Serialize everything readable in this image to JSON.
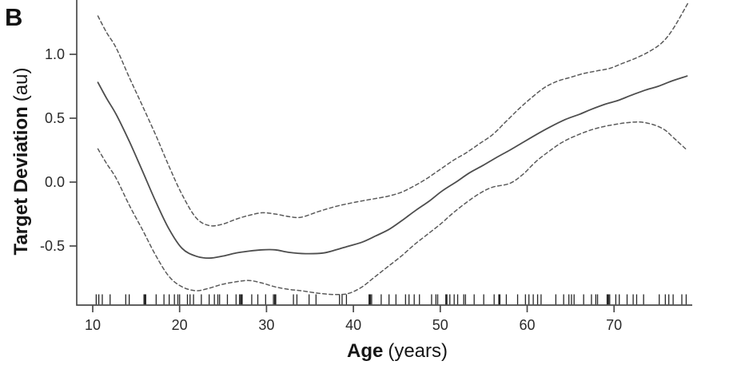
{
  "panel_label": "B",
  "axes": {
    "y_label_bold": "Target Deviation",
    "y_label_unit": "(au)",
    "x_label_bold": "Age",
    "x_label_unit": "(years)",
    "y_tick_labels": [
      "1.0",
      "0.5",
      "0.0",
      "-0.5"
    ],
    "x_tick_labels": [
      "10",
      "20",
      "30",
      "40",
      "50",
      "60",
      "70"
    ]
  },
  "colors": {
    "background": "#ffffff",
    "axis": "#4a4a4a",
    "tick_text": "#2a2a2a",
    "fit_line": "#4d4d4d",
    "ci_line": "#5a5a5a",
    "rug": "#262626",
    "label_text": "#161616"
  },
  "chart_data": {
    "type": "line",
    "title": "",
    "xlabel": "Age (years)",
    "ylabel": "Target Deviation (au)",
    "xlim": [
      8.1,
      79.1
    ],
    "ylim": [
      -0.96,
      1.43
    ],
    "x_ticks": [
      10,
      20,
      30,
      40,
      50,
      60,
      70
    ],
    "y_ticks": [
      1.0,
      0.5,
      0.0,
      -0.5
    ],
    "grid": false,
    "legend": "none",
    "series": [
      {
        "name": "smooth-fit",
        "style": "solid",
        "points": [
          [
            10.6,
            0.78
          ],
          [
            11.6,
            0.655
          ],
          [
            12.7,
            0.53
          ],
          [
            14.2,
            0.32
          ],
          [
            15.7,
            0.09
          ],
          [
            17.3,
            -0.16
          ],
          [
            18.8,
            -0.37
          ],
          [
            20.3,
            -0.52
          ],
          [
            21.9,
            -0.58
          ],
          [
            23.4,
            -0.595
          ],
          [
            24.9,
            -0.58
          ],
          [
            26.5,
            -0.555
          ],
          [
            28.0,
            -0.54
          ],
          [
            29.5,
            -0.53
          ],
          [
            31.0,
            -0.53
          ],
          [
            32.6,
            -0.55
          ],
          [
            34.5,
            -0.56
          ],
          [
            36.5,
            -0.555
          ],
          [
            38.0,
            -0.53
          ],
          [
            39.5,
            -0.5
          ],
          [
            41.0,
            -0.47
          ],
          [
            42.6,
            -0.42
          ],
          [
            44.1,
            -0.37
          ],
          [
            45.6,
            -0.3
          ],
          [
            47.2,
            -0.22
          ],
          [
            48.7,
            -0.15
          ],
          [
            50.2,
            -0.07
          ],
          [
            51.8,
            0.0
          ],
          [
            53.3,
            0.07
          ],
          [
            54.9,
            0.13
          ],
          [
            56.4,
            0.19
          ],
          [
            58.0,
            0.25
          ],
          [
            59.5,
            0.31
          ],
          [
            61.0,
            0.37
          ],
          [
            62.6,
            0.43
          ],
          [
            64.4,
            0.49
          ],
          [
            66.0,
            0.53
          ],
          [
            67.4,
            0.57
          ],
          [
            69.0,
            0.61
          ],
          [
            70.5,
            0.64
          ],
          [
            72.0,
            0.68
          ],
          [
            73.6,
            0.72
          ],
          [
            75.1,
            0.75
          ],
          [
            76.6,
            0.79
          ],
          [
            78.4,
            0.83
          ]
        ]
      },
      {
        "name": "upper-95ci",
        "style": "dashed",
        "points": [
          [
            10.6,
            1.3
          ],
          [
            11.6,
            1.17
          ],
          [
            12.7,
            1.05
          ],
          [
            14.2,
            0.82
          ],
          [
            15.7,
            0.6
          ],
          [
            17.3,
            0.36
          ],
          [
            18.8,
            0.12
          ],
          [
            20.3,
            -0.1
          ],
          [
            21.9,
            -0.28
          ],
          [
            23.4,
            -0.34
          ],
          [
            24.9,
            -0.33
          ],
          [
            26.5,
            -0.29
          ],
          [
            28.0,
            -0.26
          ],
          [
            29.5,
            -0.24
          ],
          [
            31.0,
            -0.25
          ],
          [
            32.6,
            -0.27
          ],
          [
            34.0,
            -0.275
          ],
          [
            36.0,
            -0.23
          ],
          [
            38.0,
            -0.19
          ],
          [
            40.0,
            -0.16
          ],
          [
            42.0,
            -0.135
          ],
          [
            44.0,
            -0.11
          ],
          [
            45.5,
            -0.08
          ],
          [
            47.0,
            -0.03
          ],
          [
            48.5,
            0.03
          ],
          [
            50.0,
            0.1
          ],
          [
            51.5,
            0.17
          ],
          [
            53.0,
            0.23
          ],
          [
            54.5,
            0.3
          ],
          [
            56.0,
            0.37
          ],
          [
            57.5,
            0.47
          ],
          [
            59.0,
            0.57
          ],
          [
            60.5,
            0.66
          ],
          [
            62.0,
            0.74
          ],
          [
            63.5,
            0.79
          ],
          [
            65.0,
            0.82
          ],
          [
            66.5,
            0.85
          ],
          [
            68.0,
            0.87
          ],
          [
            69.5,
            0.89
          ],
          [
            71.0,
            0.93
          ],
          [
            72.5,
            0.97
          ],
          [
            74.0,
            1.02
          ],
          [
            75.5,
            1.09
          ],
          [
            76.8,
            1.2
          ],
          [
            78.5,
            1.4
          ]
        ]
      },
      {
        "name": "lower-95ci",
        "style": "dashed",
        "points": [
          [
            10.6,
            0.26
          ],
          [
            11.6,
            0.145
          ],
          [
            12.7,
            0.03
          ],
          [
            14.2,
            -0.18
          ],
          [
            15.7,
            -0.37
          ],
          [
            17.3,
            -0.58
          ],
          [
            18.8,
            -0.74
          ],
          [
            20.3,
            -0.82
          ],
          [
            21.9,
            -0.85
          ],
          [
            23.4,
            -0.83
          ],
          [
            24.9,
            -0.8
          ],
          [
            26.5,
            -0.78
          ],
          [
            28.0,
            -0.77
          ],
          [
            29.5,
            -0.79
          ],
          [
            31.0,
            -0.82
          ],
          [
            32.6,
            -0.84
          ],
          [
            34.0,
            -0.85
          ],
          [
            36.0,
            -0.87
          ],
          [
            38.0,
            -0.88
          ],
          [
            39.5,
            -0.87
          ],
          [
            41.0,
            -0.82
          ],
          [
            42.5,
            -0.74
          ],
          [
            44.0,
            -0.66
          ],
          [
            45.5,
            -0.58
          ],
          [
            47.0,
            -0.49
          ],
          [
            48.5,
            -0.41
          ],
          [
            50.0,
            -0.33
          ],
          [
            51.5,
            -0.24
          ],
          [
            53.0,
            -0.16
          ],
          [
            54.5,
            -0.09
          ],
          [
            56.0,
            -0.04
          ],
          [
            58.0,
            -0.01
          ],
          [
            59.5,
            0.06
          ],
          [
            61.0,
            0.16
          ],
          [
            62.5,
            0.24
          ],
          [
            64.0,
            0.31
          ],
          [
            65.5,
            0.36
          ],
          [
            67.0,
            0.4
          ],
          [
            68.5,
            0.43
          ],
          [
            70.0,
            0.45
          ],
          [
            71.5,
            0.465
          ],
          [
            73.0,
            0.47
          ],
          [
            74.5,
            0.45
          ],
          [
            75.8,
            0.41
          ],
          [
            76.8,
            0.35
          ],
          [
            78.4,
            0.25
          ]
        ]
      }
    ],
    "rug_x": [
      10.4,
      10.7,
      11.1,
      12.0,
      13.8,
      14.2,
      15.9,
      16.1,
      17.3,
      18.2,
      18.8,
      19.4,
      19.8,
      20.0,
      20.9,
      21.2,
      21.6,
      22.5,
      23.4,
      24.0,
      24.4,
      24.6,
      25.5,
      26.5,
      26.9,
      27.2,
      28.3,
      29.0,
      29.9,
      30.8,
      31.0,
      33.1,
      33.5,
      34.9,
      35.7,
      38.4,
      38.7,
      39.2,
      41.8,
      42.1,
      43.2,
      44.1,
      44.9,
      46.0,
      46.4,
      47.0,
      47.6,
      49.0,
      49.5,
      49.7,
      50.7,
      51.1,
      51.6,
      52.0,
      52.7,
      52.9,
      53.9,
      55.0,
      56.2,
      56.8,
      57.6,
      58.9,
      59.8,
      60.2,
      60.7,
      61.2,
      61.6,
      63.3,
      64.2,
      64.8,
      65.1,
      65.4,
      66.5,
      67.4,
      67.9,
      68.1,
      69.2,
      69.5,
      70.2,
      70.6,
      71.5,
      72.2,
      72.6,
      73.4,
      75.2,
      75.9,
      76.3,
      76.8,
      77.8,
      78.3
    ],
    "rug_bold_x": [
      16.0,
      27.1,
      31.0,
      41.9,
      50.7,
      56.8,
      69.3
    ]
  }
}
